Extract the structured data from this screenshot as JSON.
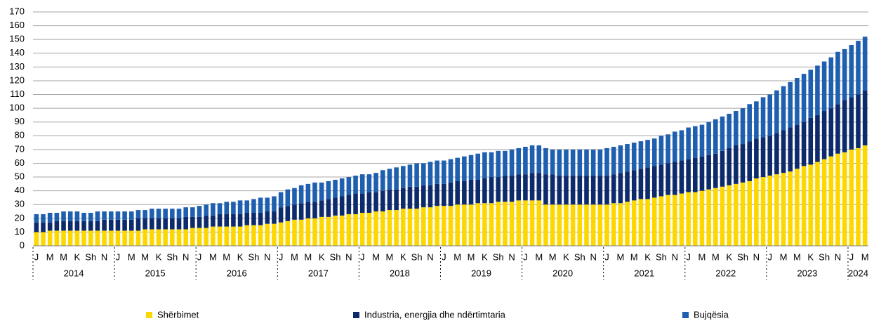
{
  "chart_data": {
    "type": "bar",
    "stacked": true,
    "categories": [
      "J",
      null,
      "M",
      null,
      "M",
      null,
      "K",
      null,
      "Sh",
      null,
      "N",
      null,
      "J",
      null,
      "M",
      null,
      "M",
      null,
      "K",
      null,
      "Sh",
      null,
      "N",
      null,
      "J",
      null,
      "M",
      null,
      "M",
      null,
      "K",
      null,
      "Sh",
      null,
      "N",
      null,
      "J",
      null,
      "M",
      null,
      "M",
      null,
      "K",
      null,
      "Sh",
      null,
      "N",
      null,
      "J",
      null,
      "M",
      null,
      "M",
      null,
      "K",
      null,
      "Sh",
      null,
      "N",
      null,
      "J",
      null,
      "M",
      null,
      "M",
      null,
      "K",
      null,
      "Sh",
      null,
      "N",
      null,
      "J",
      null,
      "M",
      null,
      "M",
      null,
      "K",
      null,
      "Sh",
      null,
      "N",
      null,
      "J",
      null,
      "M",
      null,
      "M",
      null,
      "K",
      null,
      "Sh",
      null,
      "N",
      null,
      "J",
      null,
      "M",
      null,
      "M",
      null,
      "K",
      null,
      "Sh",
      null,
      "N",
      null,
      "J",
      null,
      "M",
      null,
      "M",
      null,
      "K",
      null,
      "Sh",
      null,
      "N",
      null,
      "J",
      null,
      "M"
    ],
    "years": [
      "2014",
      "2015",
      "2016",
      "2017",
      "2018",
      "2019",
      "2020",
      "2021",
      "2022",
      "2023",
      "2024"
    ],
    "series": [
      {
        "name": "Shërbimet",
        "color": "#fcd800",
        "values": [
          10,
          10,
          11,
          11,
          11,
          11,
          11,
          11,
          11,
          11,
          11,
          11,
          11,
          11,
          11,
          11,
          12,
          12,
          12,
          12,
          12,
          12,
          12,
          13,
          13,
          13,
          14,
          14,
          14,
          14,
          14,
          15,
          15,
          15,
          16,
          16,
          17,
          18,
          19,
          19,
          20,
          20,
          21,
          21,
          22,
          22,
          23,
          23,
          24,
          24,
          25,
          25,
          26,
          26,
          27,
          27,
          27,
          28,
          28,
          29,
          29,
          29,
          30,
          30,
          30,
          31,
          31,
          31,
          32,
          32,
          32,
          33,
          33,
          33,
          33,
          30,
          30,
          30,
          30,
          30,
          30,
          30,
          30,
          30,
          30,
          31,
          31,
          32,
          33,
          34,
          34,
          35,
          36,
          37,
          37,
          38,
          39,
          39,
          40,
          41,
          42,
          43,
          44,
          45,
          46,
          47,
          49,
          50,
          51,
          52,
          53,
          54,
          56,
          58,
          59,
          61,
          63,
          65,
          67,
          68,
          70,
          71,
          73
        ]
      },
      {
        "name": "Industria, energjia dhe ndërtimtaria",
        "color": "#0d2b6b",
        "values": [
          7,
          7,
          6,
          7,
          7,
          7,
          7,
          7,
          7,
          7,
          8,
          8,
          8,
          8,
          8,
          9,
          8,
          8,
          8,
          8,
          8,
          8,
          9,
          8,
          8,
          9,
          8,
          9,
          9,
          9,
          9,
          9,
          9,
          9,
          9,
          9,
          11,
          11,
          11,
          12,
          12,
          12,
          12,
          13,
          13,
          14,
          14,
          15,
          14,
          15,
          14,
          15,
          15,
          15,
          15,
          16,
          16,
          16,
          16,
          16,
          16,
          17,
          17,
          17,
          18,
          17,
          18,
          19,
          18,
          19,
          19,
          19,
          19,
          20,
          20,
          22,
          22,
          21,
          21,
          21,
          21,
          21,
          21,
          21,
          21,
          21,
          22,
          22,
          22,
          22,
          23,
          23,
          23,
          23,
          24,
          24,
          24,
          25,
          25,
          25,
          25,
          26,
          27,
          28,
          28,
          29,
          29,
          29,
          29,
          30,
          31,
          32,
          32,
          32,
          34,
          34,
          35,
          35,
          36,
          38,
          38,
          39,
          40
        ]
      },
      {
        "name": "Bujqësia",
        "color": "#1f5fb0",
        "values": [
          6,
          6,
          7,
          6,
          7,
          7,
          7,
          6,
          6,
          7,
          6,
          6,
          6,
          6,
          6,
          6,
          6,
          7,
          7,
          7,
          7,
          7,
          7,
          7,
          8,
          8,
          9,
          8,
          9,
          9,
          10,
          9,
          10,
          11,
          10,
          11,
          11,
          12,
          12,
          13,
          13,
          14,
          13,
          13,
          13,
          13,
          13,
          13,
          14,
          13,
          14,
          15,
          15,
          16,
          16,
          16,
          17,
          16,
          17,
          17,
          17,
          17,
          17,
          18,
          18,
          19,
          19,
          18,
          19,
          18,
          19,
          19,
          20,
          20,
          20,
          19,
          18,
          19,
          19,
          19,
          19,
          19,
          19,
          19,
          20,
          20,
          20,
          20,
          20,
          20,
          20,
          20,
          21,
          21,
          22,
          22,
          23,
          23,
          23,
          24,
          25,
          25,
          25,
          25,
          26,
          27,
          27,
          29,
          30,
          31,
          32,
          33,
          34,
          35,
          35,
          36,
          36,
          37,
          38,
          37,
          38,
          39,
          39
        ]
      }
    ],
    "ylim": [
      0,
      170
    ],
    "yticks": [
      0,
      10,
      20,
      30,
      40,
      50,
      60,
      70,
      80,
      90,
      100,
      110,
      120,
      130,
      140,
      150,
      160,
      170
    ],
    "grid": true
  }
}
